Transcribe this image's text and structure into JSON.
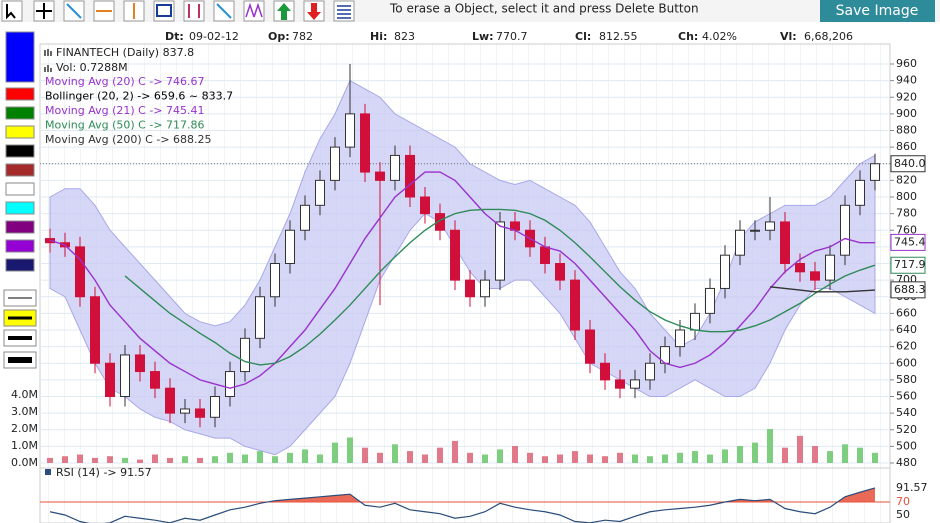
{
  "toolbar": {
    "hint": "To erase a Object, select it and press Delete Button",
    "save_button": "Save Image"
  },
  "info": [
    {
      "label": "Dt:",
      "value": "09-02-12"
    },
    {
      "label": "Op:",
      "value": "782"
    },
    {
      "label": "Hi:",
      "value": "823"
    },
    {
      "label": "Lw:",
      "value": "770.7"
    },
    {
      "label": "Cl:",
      "value": "812.55"
    },
    {
      "label": "Ch:",
      "value": "4.02%"
    },
    {
      "label": "Vl:",
      "value": "6,68,206"
    }
  ],
  "chart_data": {
    "type": "candlestick",
    "title": "FINANTECH (Daily) 837.8",
    "volume_title": "Vol: 0.7288M",
    "legend": [
      {
        "text": "Moving Avg (20) C -> 746.67",
        "color": "#9932cc"
      },
      {
        "text": "Bollinger (20, 2) -> 659.6 ~ 833.7",
        "color": "#000000"
      },
      {
        "text": "Moving Avg (21) C -> 745.41",
        "color": "#9932cc"
      },
      {
        "text": "Moving Avg (50) C -> 717.86",
        "color": "#2e8b57"
      },
      {
        "text": "Moving Avg (200) C -> 688.25",
        "color": "#333333"
      }
    ],
    "up_color": "#ffffff",
    "down_color": "#d0103a",
    "band_color": "#c8c8f4",
    "grid": true,
    "ylim": [
      480,
      960
    ],
    "yticks": [
      960,
      940,
      920,
      900,
      880,
      860,
      840,
      820,
      800,
      780,
      760,
      740,
      720,
      700,
      680,
      660,
      640,
      620,
      600,
      580,
      560,
      540,
      520,
      500,
      480
    ],
    "open": [
      750,
      745,
      740,
      680,
      600,
      560,
      610,
      590,
      570,
      540,
      545,
      535,
      560,
      590,
      630,
      680,
      720,
      760,
      790,
      820,
      860,
      900,
      830,
      820,
      850,
      800,
      780,
      760,
      700,
      680,
      700,
      770,
      760,
      740,
      720,
      700,
      640,
      600,
      580,
      570,
      580,
      600,
      620,
      640,
      660,
      690,
      730,
      760,
      760,
      770,
      720,
      710,
      700,
      730,
      790,
      820
    ],
    "high": [
      762,
      757,
      752,
      692,
      612,
      622,
      622,
      602,
      582,
      557,
      557,
      572,
      602,
      642,
      692,
      732,
      772,
      802,
      832,
      872,
      960,
      912,
      842,
      862,
      862,
      812,
      792,
      772,
      712,
      712,
      782,
      782,
      772,
      752,
      732,
      712,
      652,
      612,
      592,
      592,
      612,
      632,
      652,
      672,
      702,
      742,
      772,
      772,
      800,
      782,
      732,
      722,
      742,
      802,
      832,
      852
    ],
    "low": [
      733,
      728,
      668,
      588,
      548,
      548,
      578,
      558,
      528,
      528,
      523,
      523,
      548,
      578,
      618,
      668,
      708,
      748,
      778,
      808,
      848,
      818,
      670,
      808,
      788,
      768,
      748,
      688,
      668,
      668,
      688,
      748,
      728,
      708,
      688,
      628,
      588,
      568,
      558,
      558,
      568,
      588,
      608,
      628,
      648,
      678,
      718,
      748,
      748,
      708,
      698,
      688,
      688,
      718,
      778,
      808
    ],
    "close": [
      745,
      740,
      680,
      600,
      560,
      610,
      590,
      570,
      540,
      545,
      535,
      560,
      590,
      630,
      680,
      720,
      760,
      790,
      820,
      860,
      900,
      830,
      820,
      850,
      800,
      780,
      760,
      700,
      680,
      700,
      770,
      760,
      740,
      720,
      700,
      640,
      600,
      580,
      570,
      580,
      600,
      620,
      640,
      660,
      690,
      730,
      760,
      760,
      770,
      720,
      710,
      700,
      730,
      790,
      820,
      840
    ],
    "band_upper": [
      800,
      810,
      810,
      790,
      760,
      740,
      720,
      700,
      680,
      660,
      650,
      645,
      650,
      670,
      700,
      740,
      780,
      830,
      870,
      900,
      940,
      930,
      920,
      900,
      890,
      880,
      870,
      860,
      840,
      830,
      820,
      815,
      820,
      810,
      800,
      790,
      770,
      740,
      710,
      690,
      660,
      640,
      620,
      630,
      660,
      700,
      750,
      770,
      780,
      790,
      790,
      790,
      800,
      820,
      840,
      850
    ],
    "band_lower": [
      690,
      680,
      640,
      600,
      570,
      560,
      545,
      535,
      530,
      520,
      515,
      510,
      510,
      500,
      495,
      490,
      500,
      520,
      540,
      560,
      600,
      650,
      700,
      730,
      760,
      780,
      770,
      740,
      710,
      690,
      690,
      700,
      700,
      680,
      660,
      630,
      600,
      590,
      580,
      570,
      560,
      560,
      570,
      580,
      570,
      560,
      560,
      570,
      600,
      640,
      670,
      690,
      690,
      680,
      670,
      660
    ],
    "lines": [
      {
        "color": "#9932cc",
        "values": [
          748,
          742,
          725,
          700,
          670,
          650,
          630,
          615,
          600,
          590,
          580,
          575,
          570,
          575,
          585,
          600,
          620,
          640,
          665,
          690,
          720,
          750,
          775,
          800,
          815,
          830,
          830,
          820,
          800,
          780,
          765,
          760,
          750,
          740,
          735,
          720,
          700,
          680,
          660,
          640,
          615,
          600,
          595,
          600,
          610,
          625,
          645,
          665,
          690,
          710,
          725,
          735,
          740,
          750,
          745,
          745
        ]
      },
      {
        "color": "#2e8b57",
        "values": [
          null,
          null,
          null,
          null,
          null,
          705,
          690,
          675,
          660,
          648,
          636,
          625,
          612,
          602,
          598,
          600,
          608,
          620,
          635,
          652,
          670,
          690,
          710,
          728,
          745,
          760,
          772,
          780,
          784,
          785,
          785,
          784,
          780,
          772,
          760,
          745,
          728,
          710,
          692,
          676,
          662,
          652,
          645,
          640,
          638,
          638,
          640,
          645,
          652,
          662,
          672,
          684,
          695,
          705,
          712,
          718
        ]
      },
      {
        "color": "#333333",
        "values": [
          null,
          null,
          null,
          null,
          null,
          null,
          null,
          null,
          null,
          null,
          null,
          null,
          null,
          null,
          null,
          null,
          null,
          null,
          null,
          null,
          null,
          null,
          null,
          null,
          null,
          null,
          null,
          null,
          null,
          null,
          null,
          null,
          null,
          null,
          null,
          null,
          null,
          null,
          null,
          null,
          null,
          null,
          null,
          null,
          null,
          null,
          null,
          null,
          692,
          690,
          688,
          686,
          686,
          686,
          687,
          688
        ]
      }
    ],
    "price_markers": [
      {
        "value": 840.0,
        "label": "840.0",
        "color": "#333333"
      },
      {
        "value": 745.4,
        "label": "745.4",
        "color": "#9932cc"
      },
      {
        "value": 717.9,
        "label": "717.9",
        "color": "#2e8b57"
      },
      {
        "value": 688.3,
        "label": "688.3",
        "color": "#333333"
      }
    ],
    "volume": [
      0.3,
      0.4,
      0.5,
      0.3,
      0.4,
      0.3,
      0.2,
      0.5,
      0.3,
      0.4,
      0.3,
      0.4,
      0.6,
      0.5,
      0.7,
      0.4,
      0.6,
      0.8,
      0.5,
      1.2,
      1.5,
      0.9,
      0.6,
      1.1,
      0.7,
      0.5,
      0.9,
      1.3,
      0.6,
      0.5,
      0.8,
      1.0,
      0.6,
      0.4,
      0.5,
      0.7,
      0.5,
      0.4,
      0.6,
      0.5,
      0.4,
      0.5,
      0.6,
      0.7,
      0.5,
      0.8,
      1.0,
      1.2,
      2.0,
      0.9,
      1.6,
      1.0,
      0.7,
      1.1,
      0.9,
      0.6
    ],
    "volume_ylim": [
      0,
      4
    ],
    "volume_ticks": [
      {
        "value": 4,
        "label": "4.0M"
      },
      {
        "value": 3,
        "label": "3.0M"
      },
      {
        "value": 2,
        "label": "2.0M"
      },
      {
        "value": 1,
        "label": "1.0M"
      },
      {
        "value": 0,
        "label": "0.0M"
      }
    ],
    "rsi_title": "RSI (14) -> 91.57",
    "rsi_color": "#2a4d7a",
    "rsi_ylim": [
      40,
      100
    ],
    "rsi_level": 70,
    "rsi_ticks": [
      {
        "value": 91.57,
        "label": "91.57"
      },
      70,
      50
    ],
    "rsi": [
      55,
      50,
      40,
      35,
      38,
      48,
      45,
      42,
      38,
      45,
      42,
      50,
      58,
      62,
      68,
      72,
      74,
      76,
      78,
      80,
      82,
      65,
      62,
      68,
      58,
      55,
      52,
      45,
      48,
      55,
      68,
      62,
      58,
      55,
      50,
      40,
      38,
      42,
      40,
      48,
      55,
      58,
      60,
      62,
      65,
      70,
      74,
      72,
      74,
      60,
      55,
      52,
      62,
      78,
      85,
      91.57
    ]
  }
}
